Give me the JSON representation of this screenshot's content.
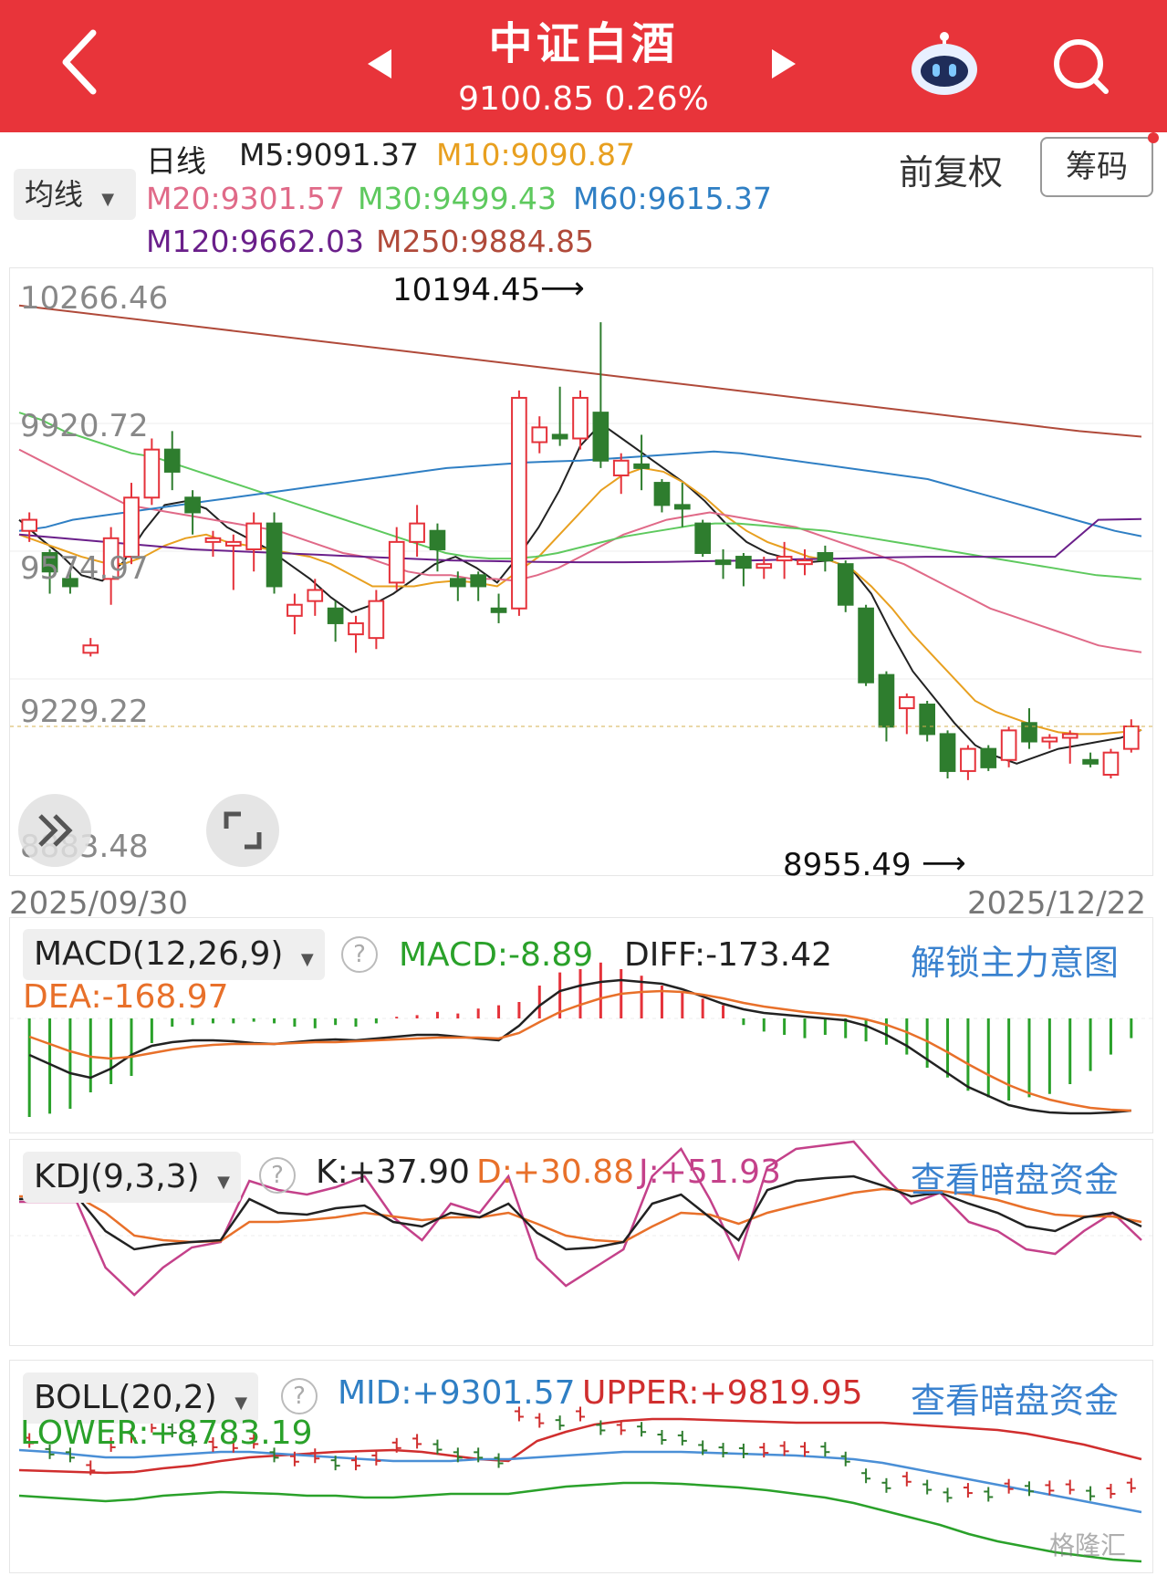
{
  "header": {
    "back_icon": "chevron-left-icon",
    "title": "中证白酒",
    "subtitle": "9100.85 0.26%",
    "prev_icon": "triangle-left-icon",
    "next_icon": "triangle-right-icon",
    "robot_icon": "robot-assistant-icon",
    "search_icon": "search-icon"
  },
  "ma_bar": {
    "selector": "均线",
    "period": "日线",
    "m5": "M5:9091.37",
    "m10": "M10:9090.87",
    "m20": "M20:9301.57",
    "m30": "M30:9499.43",
    "m60": "M60:9615.37",
    "m120": "M120:9662.03",
    "m250": "M250:9884.85",
    "adjust": "前复权",
    "chips": "筹码",
    "colors": {
      "m5": "#222222",
      "m10": "#e8a020",
      "m20": "#e06a88",
      "m30": "#5ec95e",
      "m60": "#2f7fc4",
      "m120": "#6a1f8a",
      "m250": "#b04a3a"
    }
  },
  "price_chart": {
    "y_labels": [
      "10266.46",
      "9920.72",
      "9574.97",
      "9229.22",
      "8883.48"
    ],
    "high_marker": "10194.45",
    "low_marker": "8955.49",
    "start_date": "2025/09/30",
    "end_date": "2025/12/22",
    "expand_icon": "double-chevron-right-icon",
    "fullscreen_icon": "fullscreen-icon"
  },
  "macd": {
    "selector": "MACD(12,26,9)",
    "macd": "MACD:-8.89",
    "diff": "DIFF:-173.42",
    "dea": "DEA:-168.97",
    "link": "解锁主力意图"
  },
  "kdj": {
    "selector": "KDJ(9,3,3)",
    "k": "K:+37.90",
    "d": "D:+30.88",
    "j": "J:+51.93",
    "link": "查看暗盘资金"
  },
  "boll": {
    "selector": "BOLL(20,2)",
    "mid": "MID:+9301.57",
    "upper": "UPPER:+9819.95",
    "lower": "LOWER:+8783.19",
    "link": "查看暗盘资金"
  },
  "watermark": "格隆汇",
  "chart_data": {
    "type": "candlestick",
    "y_range": [
      8883.48,
      10266.46
    ],
    "candles": [
      {
        "o": 9630,
        "c": 9660,
        "h": 9680,
        "l": 9600
      },
      {
        "o": 9570,
        "c": 9520,
        "h": 9580,
        "l": 9460
      },
      {
        "o": 9500,
        "c": 9480,
        "h": 9530,
        "l": 9460
      },
      {
        "o": 9300,
        "c": 9320,
        "h": 9340,
        "l": 9290
      },
      {
        "o": 9500,
        "c": 9610,
        "h": 9640,
        "l": 9430
      },
      {
        "o": 9560,
        "c": 9720,
        "h": 9760,
        "l": 9540
      },
      {
        "o": 9720,
        "c": 9850,
        "h": 9880,
        "l": 9700
      },
      {
        "o": 9850,
        "c": 9790,
        "h": 9900,
        "l": 9740
      },
      {
        "o": 9720,
        "c": 9680,
        "h": 9740,
        "l": 9620
      },
      {
        "o": 9600,
        "c": 9610,
        "h": 9630,
        "l": 9560
      },
      {
        "o": 9590,
        "c": 9600,
        "h": 9620,
        "l": 9470
      },
      {
        "o": 9580,
        "c": 9650,
        "h": 9680,
        "l": 9520
      },
      {
        "o": 9650,
        "c": 9480,
        "h": 9680,
        "l": 9460
      },
      {
        "o": 9400,
        "c": 9430,
        "h": 9460,
        "l": 9350
      },
      {
        "o": 9440,
        "c": 9470,
        "h": 9500,
        "l": 9400
      },
      {
        "o": 9420,
        "c": 9380,
        "h": 9440,
        "l": 9330
      },
      {
        "o": 9350,
        "c": 9380,
        "h": 9400,
        "l": 9300
      },
      {
        "o": 9340,
        "c": 9440,
        "h": 9470,
        "l": 9310
      },
      {
        "o": 9490,
        "c": 9600,
        "h": 9640,
        "l": 9470
      },
      {
        "o": 9600,
        "c": 9650,
        "h": 9700,
        "l": 9560
      },
      {
        "o": 9630,
        "c": 9580,
        "h": 9650,
        "l": 9520
      },
      {
        "o": 9500,
        "c": 9480,
        "h": 9520,
        "l": 9440
      },
      {
        "o": 9510,
        "c": 9480,
        "h": 9520,
        "l": 9440
      },
      {
        "o": 9420,
        "c": 9410,
        "h": 9460,
        "l": 9380
      },
      {
        "o": 9420,
        "c": 9990,
        "h": 10010,
        "l": 9400
      },
      {
        "o": 9870,
        "c": 9910,
        "h": 9940,
        "l": 9840
      },
      {
        "o": 9890,
        "c": 9880,
        "h": 10020,
        "l": 9860
      },
      {
        "o": 9880,
        "c": 9990,
        "h": 10010,
        "l": 9850
      },
      {
        "o": 9950,
        "c": 9820,
        "h": 10194.45,
        "l": 9800
      },
      {
        "o": 9780,
        "c": 9820,
        "h": 9840,
        "l": 9730
      },
      {
        "o": 9810,
        "c": 9800,
        "h": 9890,
        "l": 9740
      },
      {
        "o": 9760,
        "c": 9700,
        "h": 9770,
        "l": 9680
      },
      {
        "o": 9700,
        "c": 9690,
        "h": 9760,
        "l": 9640
      },
      {
        "o": 9650,
        "c": 9570,
        "h": 9660,
        "l": 9560
      },
      {
        "o": 9550,
        "c": 9540,
        "h": 9580,
        "l": 9500
      },
      {
        "o": 9560,
        "c": 9530,
        "h": 9570,
        "l": 9480
      },
      {
        "o": 9530,
        "c": 9540,
        "h": 9560,
        "l": 9500
      },
      {
        "o": 9550,
        "c": 9560,
        "h": 9600,
        "l": 9500
      },
      {
        "o": 9540,
        "c": 9550,
        "h": 9580,
        "l": 9510
      },
      {
        "o": 9570,
        "c": 9550,
        "h": 9590,
        "l": 9520
      },
      {
        "o": 9540,
        "c": 9430,
        "h": 9550,
        "l": 9410
      },
      {
        "o": 9420,
        "c": 9220,
        "h": 9430,
        "l": 9210
      },
      {
        "o": 9240,
        "c": 9100,
        "h": 9250,
        "l": 9060
      },
      {
        "o": 9150,
        "c": 9180,
        "h": 9190,
        "l": 9080
      },
      {
        "o": 9160,
        "c": 9080,
        "h": 9170,
        "l": 9060
      },
      {
        "o": 9080,
        "c": 8980,
        "h": 9090,
        "l": 8960
      },
      {
        "o": 8980,
        "c": 9040,
        "h": 9050,
        "l": 8955.49
      },
      {
        "o": 9040,
        "c": 8990,
        "h": 9050,
        "l": 8980
      },
      {
        "o": 9010,
        "c": 9090,
        "h": 9100,
        "l": 8990
      },
      {
        "o": 9110,
        "c": 9060,
        "h": 9150,
        "l": 9040
      },
      {
        "o": 9060,
        "c": 9070,
        "h": 9080,
        "l": 9040
      },
      {
        "o": 9070,
        "c": 9080,
        "h": 9090,
        "l": 9000
      },
      {
        "o": 9010,
        "c": 9000,
        "h": 9030,
        "l": 8990
      },
      {
        "o": 8970,
        "c": 9030,
        "h": 9040,
        "l": 8960
      },
      {
        "o": 9040,
        "c": 9100.85,
        "h": 9120,
        "l": 9030
      }
    ],
    "series": [
      {
        "name": "M5",
        "values": [
          9660,
          9610,
          9565,
          9510,
          9495,
          9545,
          9630,
          9700,
          9710,
          9690,
          9640,
          9610,
          9580,
          9540,
          9500,
          9450,
          9410,
          9430,
          9460,
          9500,
          9540,
          9560,
          9530,
          9490,
          9560,
          9640,
          9740,
          9860,
          9920,
          9880,
          9840,
          9800,
          9760,
          9710,
          9650,
          9600,
          9570,
          9555,
          9545,
          9550,
          9530,
          9460,
          9350,
          9250,
          9180,
          9110,
          9050,
          9020,
          9000,
          9020,
          9040,
          9050,
          9060,
          9070,
          9091.37
        ]
      },
      {
        "name": "M10",
        "values": [
          9620,
          9600,
          9580,
          9560,
          9545,
          9540,
          9560,
          9590,
          9610,
          9620,
          9600,
          9590,
          9580,
          9570,
          9560,
          9540,
          9510,
          9480,
          9480,
          9480,
          9490,
          9495,
          9490,
          9480,
          9520,
          9560,
          9620,
          9680,
          9740,
          9780,
          9800,
          9790,
          9760,
          9720,
          9670,
          9630,
          9600,
          9580,
          9560,
          9550,
          9530,
          9480,
          9420,
          9350,
          9290,
          9230,
          9170,
          9140,
          9120,
          9100,
          9085,
          9080,
          9080,
          9085,
          9090.87
        ]
      },
      {
        "name": "M20",
        "values": [
          9850,
          9820,
          9790,
          9760,
          9730,
          9700,
          9690,
          9680,
          9670,
          9660,
          9650,
          9640,
          9630,
          9610,
          9590,
          9570,
          9560,
          9540,
          9520,
          9510,
          9510,
          9500,
          9500,
          9495,
          9510,
          9530,
          9560,
          9590,
          9620,
          9640,
          9660,
          9670,
          9680,
          9670,
          9660,
          9650,
          9640,
          9620,
          9600,
          9580,
          9560,
          9540,
          9510,
          9480,
          9450,
          9420,
          9400,
          9380,
          9360,
          9340,
          9320,
          9310,
          9301.57
        ]
      },
      {
        "name": "M30",
        "values": [
          9950,
          9930,
          9900,
          9880,
          9860,
          9840,
          9830,
          9810,
          9790,
          9770,
          9750,
          9730,
          9710,
          9690,
          9670,
          9650,
          9630,
          9610,
          9590,
          9570,
          9560,
          9555,
          9555,
          9560,
          9570,
          9585,
          9600,
          9615,
          9625,
          9635,
          9645,
          9650,
          9650,
          9645,
          9640,
          9635,
          9630,
          9620,
          9610,
          9600,
          9590,
          9580,
          9570,
          9560,
          9550,
          9540,
          9530,
          9520,
          9510,
          9505,
          9499.43
        ]
      },
      {
        "name": "M60",
        "values": [
          9630,
          9640,
          9660,
          9670,
          9680,
          9690,
          9700,
          9710,
          9720,
          9730,
          9740,
          9750,
          9760,
          9770,
          9780,
          9790,
          9800,
          9805,
          9810,
          9815,
          9818,
          9820,
          9825,
          9830,
          9835,
          9840,
          9845,
          9840,
          9830,
          9820,
          9810,
          9800,
          9790,
          9780,
          9770,
          9750,
          9730,
          9710,
          9690,
          9670,
          9650,
          9630,
          9615.37
        ]
      },
      {
        "name": "M120",
        "values": [
          9620,
          9610,
          9600,
          9590,
          9580,
          9575,
          9570,
          9565,
          9560,
          9555,
          9550,
          9548,
          9546,
          9545,
          9545,
          9546,
          9548,
          9550,
          9553,
          9555,
          9558,
          9560,
          9560,
          9560,
          9560,
          9660,
          9662.03
        ]
      },
      {
        "name": "M250",
        "values": [
          10240,
          10220,
          10200,
          10180,
          10160,
          10140,
          10120,
          10100,
          10080,
          10060,
          10040,
          10020,
          10000,
          9980,
          9960,
          9940,
          9920,
          9900,
          9884.85
        ]
      }
    ]
  }
}
